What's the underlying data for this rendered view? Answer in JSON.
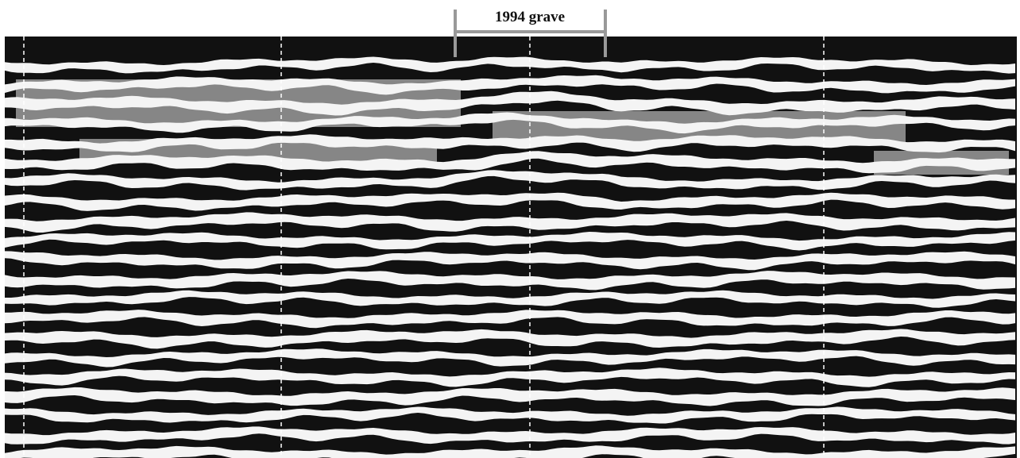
{
  "annotation": {
    "label": "1994 grave"
  }
}
